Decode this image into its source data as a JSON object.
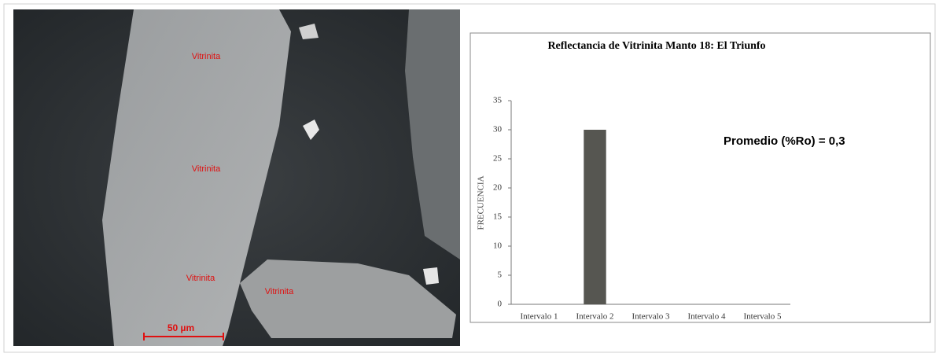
{
  "chart_data": {
    "type": "bar",
    "title": "Reflectancia de Vitrinita Manto 18: El Triunfo",
    "categories": [
      "Intervalo 1",
      "Intervalo 2",
      "Intervalo 3",
      "Intervalo 4",
      "Intervalo 5"
    ],
    "values": [
      0,
      30,
      0,
      0,
      0
    ],
    "color": "#565651",
    "y_label": "FRECUENCIA",
    "ylim": [
      0,
      35
    ],
    "yticks": [
      0,
      5,
      10,
      15,
      20,
      25,
      30,
      35
    ],
    "grid": false,
    "annotation": "Promedio (%Ro) = 0,3"
  },
  "micrograph": {
    "labels": [
      "Vitrinita",
      "Vitrinita",
      "Vitrinita",
      "Vitrinita"
    ],
    "scale_bar": "50 µm"
  }
}
